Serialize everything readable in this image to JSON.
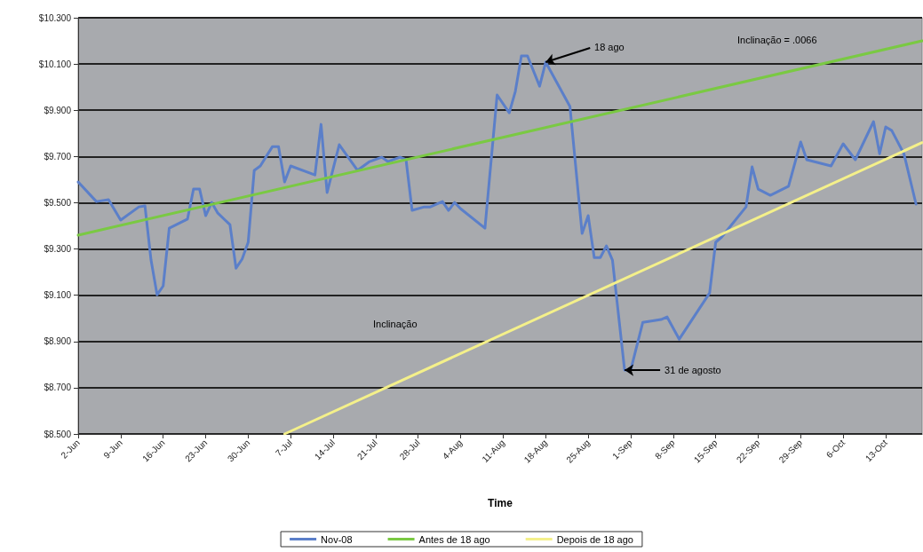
{
  "chart_data": {
    "type": "line",
    "xlabel": "Time",
    "annotations": [
      {
        "text": "18 ago",
        "x": "--08-18",
        "y": 10108
      },
      {
        "text": "31 de agosto",
        "x": "--08-31",
        "y": 8776
      },
      "Inclinação = .0066",
      "Inclinação"
    ],
    "series": [
      {
        "name": "Nov-08",
        "color": "#5b7fc9",
        "x": [
          "--06-02",
          "--06-05",
          "--06-07",
          "--06-09",
          "--06-12",
          "--06-13",
          "--06-14",
          "--06-15",
          "--06-16",
          "--06-17",
          "--06-20",
          "--06-21",
          "--06-22",
          "--06-23",
          "--06-24",
          "--06-25",
          "--06-27",
          "--06-28",
          "--06-29",
          "--06-30",
          "--07-01",
          "--07-02",
          "--07-04",
          "--07-05",
          "--07-06",
          "--07-07",
          "--07-11",
          "--07-12",
          "--07-13",
          "--07-15",
          "--07-18",
          "--07-20",
          "--07-22",
          "--07-23",
          "--07-25",
          "--07-26",
          "--07-27",
          "--07-29",
          "--07-30",
          "--08-01",
          "--08-02",
          "--08-03",
          "--08-04",
          "--08-08",
          "--08-10",
          "--08-12",
          "--08-13",
          "--08-14",
          "--08-15",
          "--08-17",
          "--08-18",
          "--08-22",
          "--08-24",
          "--08-25",
          "--08-26",
          "--08-27",
          "--08-28",
          "--08-29",
          "--08-31",
          "--09-01",
          "--09-03",
          "--09-06",
          "--09-07",
          "--09-09",
          "--09-14",
          "--09-15",
          "--09-16",
          "--09-20",
          "--09-21",
          "--09-22",
          "--09-24",
          "--09-27",
          "--09-29",
          "--09-30",
          "--10-04",
          "--10-06",
          "--10-08",
          "--10-11",
          "--10-12",
          "--10-13",
          "--10-14",
          "--10-16",
          "--10-18"
        ],
        "values": [
          9590,
          9505,
          9513,
          9425,
          9482,
          9486,
          9252,
          9102,
          9140,
          9390,
          9429,
          9559,
          9559,
          9444,
          9501,
          9455,
          9405,
          9217,
          9256,
          9329,
          9640,
          9659,
          9743,
          9743,
          9590,
          9659,
          9620,
          9839,
          9544,
          9751,
          9640,
          9678,
          9697,
          9678,
          9697,
          9686,
          9467,
          9482,
          9482,
          9505,
          9467,
          9501,
          9474,
          9390,
          9966,
          9889,
          9981,
          10135,
          10135,
          10004,
          10108,
          9916,
          9367,
          9444,
          9263,
          9263,
          9313,
          9252,
          8776,
          8776,
          8983,
          8995,
          9006,
          8910,
          9110,
          9329,
          9352,
          9482,
          9655,
          9559,
          9532,
          9571,
          9763,
          9686,
          9659,
          9755,
          9686,
          9851,
          9712,
          9828,
          9812,
          9712,
          9494
        ]
      },
      {
        "name": "Antes de 18 ago",
        "color": "#7ac943",
        "x": [
          "--06-02",
          "--10-19"
        ],
        "values": [
          9360,
          10200
        ]
      },
      {
        "name": "Depois de 18 ago",
        "color": "#f4f08a",
        "x": [
          "--07-06",
          "--10-19"
        ],
        "values": [
          8500,
          9760
        ]
      }
    ],
    "xlim": [
      "--06-02",
      "--10-19"
    ],
    "xticks": [
      {
        "value": "--06-02",
        "label": "2-Jun"
      },
      {
        "value": "--06-09",
        "label": "9-Jun"
      },
      {
        "value": "--06-16",
        "label": "16-Jun"
      },
      {
        "value": "--06-23",
        "label": "23-Jun"
      },
      {
        "value": "--06-30",
        "label": "30-Jun"
      },
      {
        "value": "--07-07",
        "label": "7-Jul"
      },
      {
        "value": "--07-14",
        "label": "14-Jul"
      },
      {
        "value": "--07-21",
        "label": "21-Jul"
      },
      {
        "value": "--07-28",
        "label": "28-Jul"
      },
      {
        "value": "--08-04",
        "label": "4-Aug"
      },
      {
        "value": "--08-11",
        "label": "11-Aug"
      },
      {
        "value": "--08-18",
        "label": "18-Aug"
      },
      {
        "value": "--08-25",
        "label": "25-Aug"
      },
      {
        "value": "--09-01",
        "label": "1-Sep"
      },
      {
        "value": "--09-08",
        "label": "8-Sep"
      },
      {
        "value": "--09-15",
        "label": "15-Sep"
      },
      {
        "value": "--09-22",
        "label": "22-Sep"
      },
      {
        "value": "--09-29",
        "label": "29-Sep"
      },
      {
        "value": "--10-06",
        "label": "6-Oct"
      },
      {
        "value": "--10-13",
        "label": "13-Oct"
      }
    ],
    "ylim": [
      8500,
      10300
    ],
    "yticks": [
      {
        "value": 8500,
        "label": "$8.500"
      },
      {
        "value": 8700,
        "label": "$8.700"
      },
      {
        "value": 8900,
        "label": "$8.900"
      },
      {
        "value": 9100,
        "label": "$9.100"
      },
      {
        "value": 9300,
        "label": "$9.300"
      },
      {
        "value": 9500,
        "label": "$9.500"
      },
      {
        "value": 9700,
        "label": "$9.700"
      },
      {
        "value": 9900,
        "label": "$9.900"
      },
      {
        "value": 10100,
        "label": "$10.100"
      },
      {
        "value": 10300,
        "label": "$10.300"
      }
    ],
    "grid": "y",
    "legend": "bottom",
    "marker": "none"
  }
}
